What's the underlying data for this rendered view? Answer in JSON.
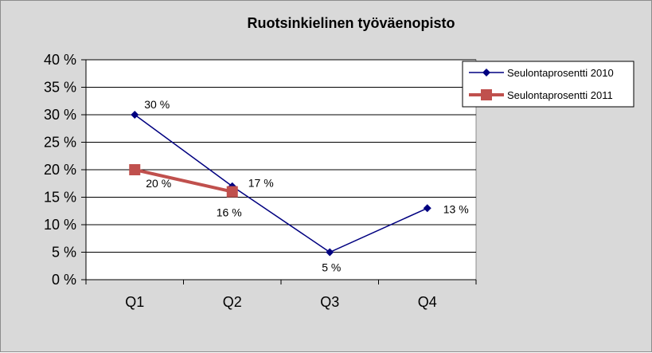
{
  "chart_data": {
    "type": "line",
    "title": "Ruotsinkielinen työväenopisto",
    "xlabel": "",
    "ylabel": "",
    "categories": [
      "Q1",
      "Q2",
      "Q3",
      "Q4"
    ],
    "ylim": [
      0,
      40
    ],
    "yticks": [
      0,
      5,
      10,
      15,
      20,
      25,
      30,
      35,
      40
    ],
    "ytick_labels": [
      "0 %",
      "5 %",
      "10 %",
      "15 %",
      "20 %",
      "25 %",
      "30 %",
      "35 %",
      "40 %"
    ],
    "grid": true,
    "legend_position": "top-right",
    "series": [
      {
        "name": "Seulontaprosentti  2010",
        "values": [
          30,
          17,
          5,
          13
        ],
        "labels": [
          "30 %",
          "17 %",
          "5 %",
          "13 %"
        ],
        "color": "#000080",
        "marker": "diamond"
      },
      {
        "name": "Seulontaprosentti  2011",
        "values": [
          20,
          16,
          null,
          null
        ],
        "labels": [
          "20 %",
          "16 %",
          "",
          ""
        ],
        "color": "#c0504d",
        "marker": "square"
      }
    ]
  }
}
